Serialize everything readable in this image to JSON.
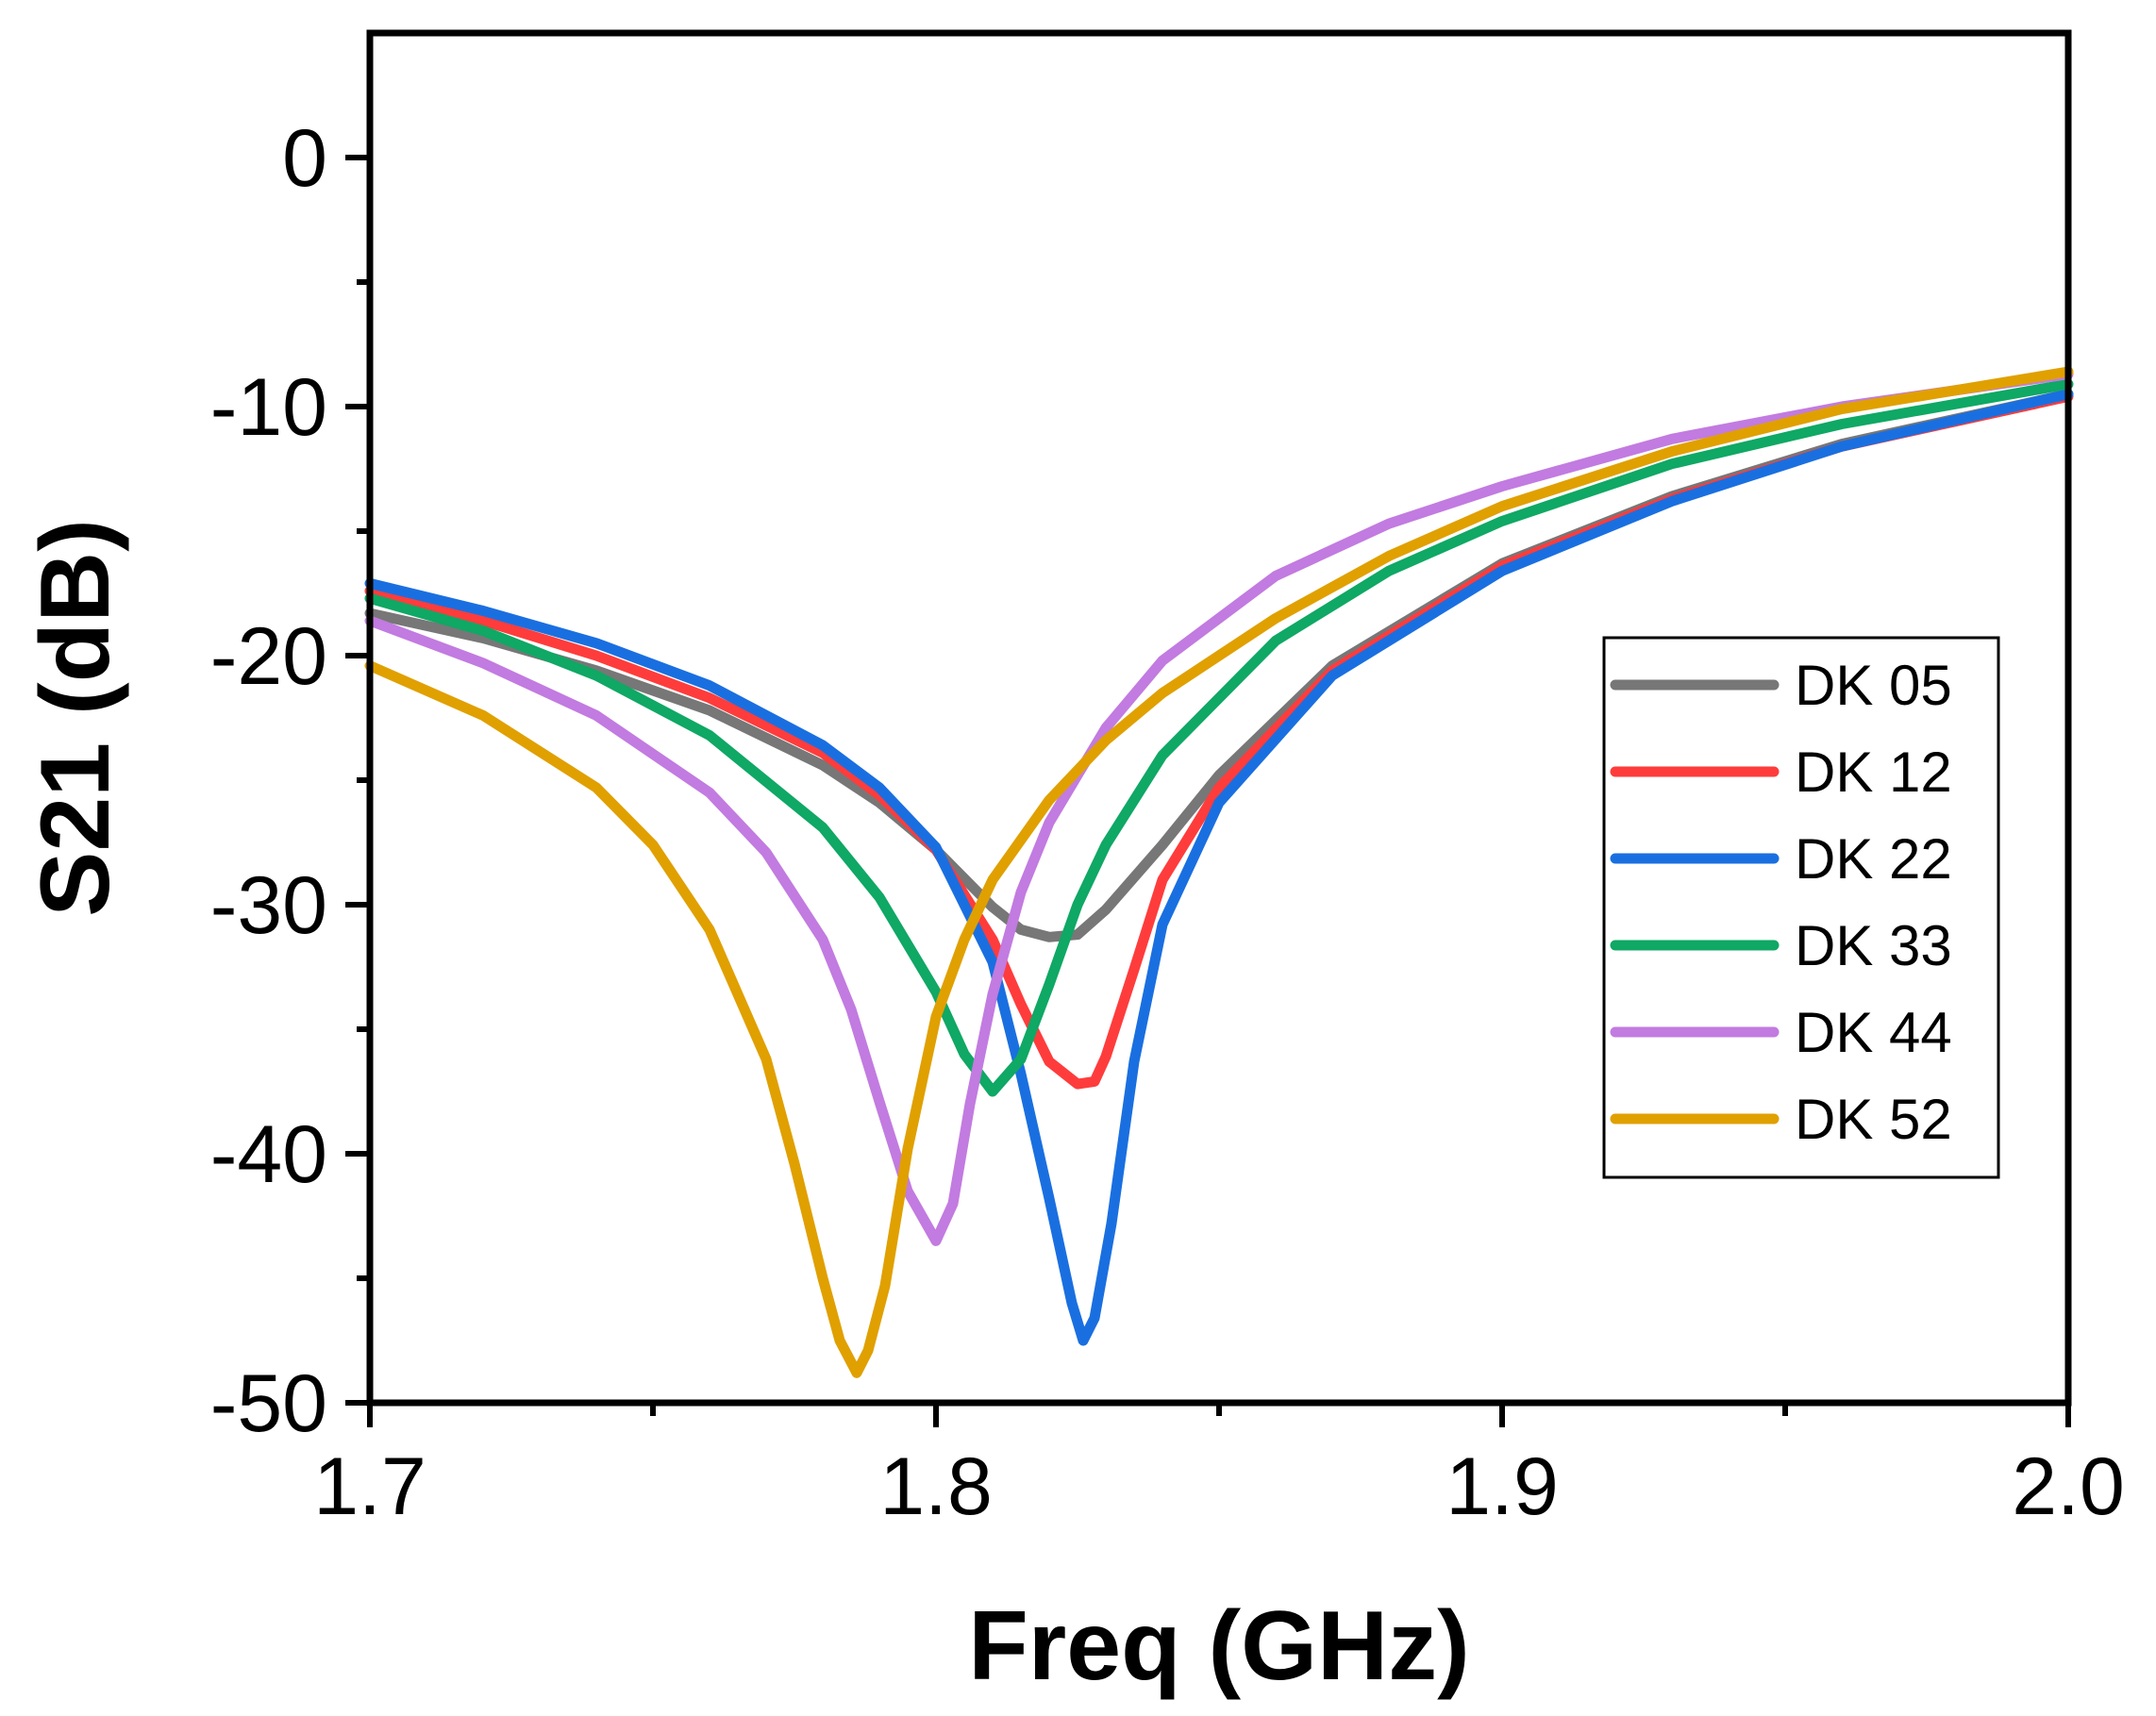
{
  "chart_data": {
    "type": "line",
    "title": "",
    "xlabel": "Freq (GHz)",
    "ylabel": "S21 (dB)",
    "xlim": [
      1.7,
      2.0
    ],
    "ylim": [
      -50,
      5
    ],
    "xticks": [
      {
        "value": 1.7,
        "label": "1.7"
      },
      {
        "value": 1.8,
        "label": "1.8"
      },
      {
        "value": 1.9,
        "label": "1.9"
      },
      {
        "value": 2.0,
        "label": "2.0"
      }
    ],
    "xminor": [
      1.75,
      1.85,
      1.95
    ],
    "yticks": [
      {
        "value": 0,
        "label": "0"
      },
      {
        "value": -10,
        "label": "-10"
      },
      {
        "value": -20,
        "label": "-20"
      },
      {
        "value": -30,
        "label": "-30"
      },
      {
        "value": -40,
        "label": "-40"
      },
      {
        "value": -50,
        "label": "-50"
      }
    ],
    "yminor": [
      -5,
      -15,
      -25,
      -35,
      -45
    ],
    "grid": false,
    "legend_position": "right",
    "series": [
      {
        "name": "DK 05",
        "color": "#777777",
        "x": [
          1.7,
          1.72,
          1.74,
          1.76,
          1.78,
          1.79,
          1.8,
          1.81,
          1.815,
          1.82,
          1.825,
          1.83,
          1.84,
          1.85,
          1.87,
          1.9,
          1.93,
          1.96,
          2.0
        ],
        "y": [
          -18.3,
          -19.3,
          -20.6,
          -22.2,
          -24.4,
          -25.9,
          -27.8,
          -30.1,
          -31.0,
          -31.3,
          -31.2,
          -30.2,
          -27.6,
          -24.8,
          -20.4,
          -16.3,
          -13.6,
          -11.5,
          -9.5
        ]
      },
      {
        "name": "DK 12",
        "color": "#ff3c3c",
        "x": [
          1.7,
          1.72,
          1.74,
          1.76,
          1.78,
          1.79,
          1.8,
          1.81,
          1.815,
          1.82,
          1.825,
          1.828,
          1.83,
          1.835,
          1.84,
          1.85,
          1.87,
          1.9,
          1.93,
          1.96,
          2.0
        ],
        "y": [
          -17.4,
          -18.6,
          -20.0,
          -21.7,
          -23.9,
          -25.6,
          -27.8,
          -31.4,
          -34.0,
          -36.3,
          -37.2,
          -37.1,
          -36.1,
          -32.6,
          -29.0,
          -25.3,
          -20.6,
          -16.4,
          -13.7,
          -11.6,
          -9.6
        ]
      },
      {
        "name": "DK 22",
        "color": "#1a6fe0",
        "x": [
          1.7,
          1.72,
          1.74,
          1.76,
          1.78,
          1.79,
          1.8,
          1.81,
          1.815,
          1.82,
          1.824,
          1.826,
          1.828,
          1.831,
          1.835,
          1.84,
          1.85,
          1.87,
          1.9,
          1.93,
          1.96,
          2.0
        ],
        "y": [
          -17.1,
          -18.2,
          -19.5,
          -21.2,
          -23.6,
          -25.3,
          -27.7,
          -32.3,
          -36.8,
          -41.8,
          -46.0,
          -47.5,
          -46.6,
          -42.8,
          -36.3,
          -30.8,
          -25.9,
          -20.8,
          -16.6,
          -13.8,
          -11.6,
          -9.5
        ]
      },
      {
        "name": "DK 33",
        "color": "#0fa864",
        "x": [
          1.7,
          1.72,
          1.74,
          1.76,
          1.78,
          1.79,
          1.8,
          1.805,
          1.81,
          1.815,
          1.82,
          1.825,
          1.83,
          1.84,
          1.86,
          1.88,
          1.9,
          1.93,
          1.96,
          2.0
        ],
        "y": [
          -17.7,
          -19.0,
          -20.8,
          -23.2,
          -26.9,
          -29.7,
          -33.5,
          -36.0,
          -37.5,
          -36.2,
          -33.2,
          -30.0,
          -27.6,
          -24.0,
          -19.4,
          -16.6,
          -14.6,
          -12.3,
          -10.7,
          -9.1
        ]
      },
      {
        "name": "DK 44",
        "color": "#c27be0",
        "x": [
          1.7,
          1.72,
          1.74,
          1.76,
          1.77,
          1.78,
          1.785,
          1.79,
          1.795,
          1.8,
          1.803,
          1.806,
          1.81,
          1.815,
          1.82,
          1.83,
          1.84,
          1.86,
          1.88,
          1.9,
          1.93,
          1.96,
          2.0
        ],
        "y": [
          -18.6,
          -20.3,
          -22.4,
          -25.5,
          -27.9,
          -31.4,
          -34.2,
          -37.9,
          -41.5,
          -43.5,
          -42.0,
          -38.0,
          -33.6,
          -29.5,
          -26.7,
          -22.9,
          -20.2,
          -16.8,
          -14.7,
          -13.2,
          -11.3,
          -10.0,
          -8.7
        ]
      },
      {
        "name": "DK 52",
        "color": "#e0a000",
        "x": [
          1.7,
          1.72,
          1.74,
          1.75,
          1.76,
          1.77,
          1.775,
          1.78,
          1.783,
          1.786,
          1.788,
          1.791,
          1.795,
          1.8,
          1.805,
          1.81,
          1.82,
          1.83,
          1.84,
          1.86,
          1.88,
          1.9,
          1.93,
          1.96,
          2.0
        ],
        "y": [
          -20.4,
          -22.4,
          -25.3,
          -27.6,
          -31.0,
          -36.2,
          -40.4,
          -45.0,
          -47.5,
          -48.8,
          -47.9,
          -45.3,
          -39.8,
          -34.5,
          -31.4,
          -29.0,
          -25.8,
          -23.4,
          -21.5,
          -18.5,
          -16.0,
          -14.0,
          -11.8,
          -10.1,
          -8.6
        ]
      }
    ]
  }
}
